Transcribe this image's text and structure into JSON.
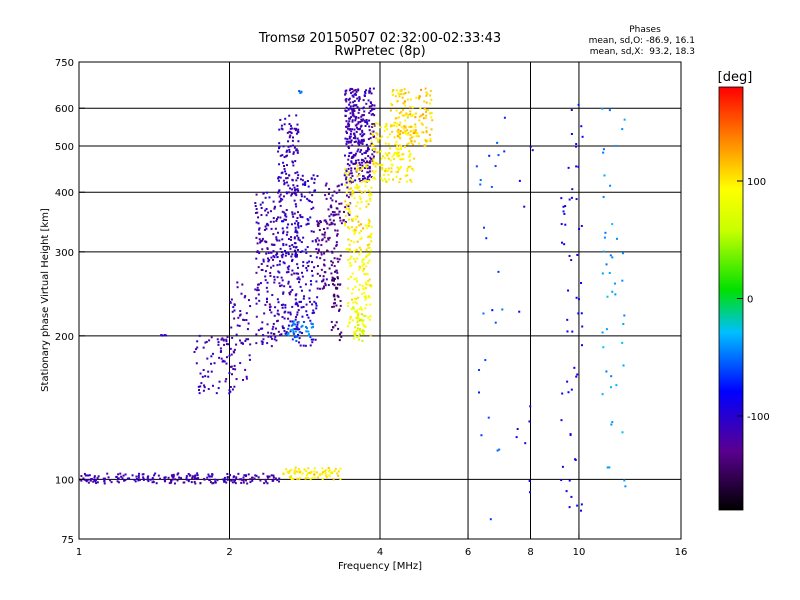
{
  "chart_data": {
    "type": "scatter",
    "title": "Tromsø 20150507 02:32:00-02:33:43",
    "subtitle": "RwPretec (8p)",
    "xlabel": "Frequency [MHz]",
    "ylabel": "Stationary phase Virtual Height [km]",
    "x_scale": "log",
    "y_scale": "log",
    "xlim": [
      1,
      16
    ],
    "ylim": [
      75,
      750
    ],
    "x_ticks": [
      1,
      2,
      4,
      6,
      8,
      10,
      16
    ],
    "x_tick_labels": [
      "1",
      "2",
      "4",
      "6",
      "8",
      "10",
      "16"
    ],
    "x_gridlines": [
      2,
      4,
      6,
      8,
      10
    ],
    "y_ticks": [
      75,
      100,
      200,
      300,
      400,
      500,
      600,
      750
    ],
    "y_tick_labels": [
      "75",
      "100",
      "200",
      "300",
      "400",
      "500",
      "600",
      "750"
    ],
    "y_gridlines": [
      100,
      200,
      300,
      400,
      500,
      600
    ],
    "grid": true,
    "stats": {
      "heading": "Phases",
      "line_o": "mean, sd,O: -86.9, 16.1",
      "line_x": "mean, sd,X:  93.2, 18.3"
    },
    "colorbar": {
      "label": "[deg]",
      "min": -180,
      "max": 180,
      "ticks": [
        100,
        0,
        -100
      ],
      "tick_labels": [
        "100",
        "0",
        "-100"
      ]
    },
    "series": [
      {
        "kind": "band",
        "f": [
          1.0,
          2.55
        ],
        "h": [
          98,
          103
        ],
        "phase": -115,
        "n": 220
      },
      {
        "kind": "band",
        "f": [
          2.55,
          3.35
        ],
        "h": [
          100,
          106
        ],
        "phase": 100,
        "n": 80
      },
      {
        "kind": "band",
        "f": [
          1.45,
          1.5
        ],
        "h": [
          200,
          201
        ],
        "phase": -110,
        "n": 6
      },
      {
        "kind": "band",
        "f": [
          1.7,
          2.05
        ],
        "h": [
          150,
          200
        ],
        "phase": -115,
        "n": 70
      },
      {
        "kind": "band",
        "f": [
          2.0,
          2.2
        ],
        "h": [
          160,
          260
        ],
        "phase": -115,
        "n": 60
      },
      {
        "kind": "band",
        "f": [
          2.25,
          2.5
        ],
        "h": [
          190,
          400
        ],
        "phase": -115,
        "n": 170
      },
      {
        "kind": "band",
        "f": [
          2.5,
          2.75
        ],
        "h": [
          200,
          580
        ],
        "phase": -110,
        "n": 260
      },
      {
        "kind": "band",
        "f": [
          2.7,
          3.0
        ],
        "h": [
          190,
          440
        ],
        "phase": -105,
        "n": 150
      },
      {
        "kind": "band",
        "f": [
          2.6,
          2.95
        ],
        "h": [
          195,
          215
        ],
        "phase": -50,
        "n": 40
      },
      {
        "kind": "band",
        "f": [
          3.0,
          3.3
        ],
        "h": [
          250,
          350
        ],
        "phase": -130,
        "n": 90
      },
      {
        "kind": "band",
        "f": [
          3.1,
          3.5
        ],
        "h": [
          340,
          420
        ],
        "phase": -125,
        "n": 60
      },
      {
        "kind": "band",
        "f": [
          3.2,
          3.35
        ],
        "h": [
          195,
          300
        ],
        "phase": -140,
        "n": 40
      },
      {
        "kind": "band",
        "f": [
          3.4,
          3.9
        ],
        "h": [
          420,
          660
        ],
        "phase": -115,
        "n": 320
      },
      {
        "kind": "band",
        "f": [
          3.4,
          3.85
        ],
        "h": [
          300,
          460
        ],
        "phase": 100,
        "n": 140
      },
      {
        "kind": "band",
        "f": [
          3.45,
          3.85
        ],
        "h": [
          200,
          300
        ],
        "phase": 95,
        "n": 120
      },
      {
        "kind": "band",
        "f": [
          3.5,
          3.75
        ],
        "h": [
          195,
          230
        ],
        "phase": 60,
        "n": 30
      },
      {
        "kind": "band",
        "f": [
          3.85,
          4.7
        ],
        "h": [
          420,
          560
        ],
        "phase": 100,
        "n": 160
      },
      {
        "kind": "band",
        "f": [
          4.2,
          5.1
        ],
        "h": [
          500,
          660
        ],
        "phase": 110,
        "n": 140
      },
      {
        "kind": "band",
        "f": [
          2.75,
          2.8
        ],
        "h": [
          640,
          660
        ],
        "phase": -50,
        "n": 4
      },
      {
        "kind": "band",
        "f": [
          6.2,
          7.2
        ],
        "h": [
          80,
          620
        ],
        "phase": -60,
        "n": 25
      },
      {
        "kind": "band",
        "f": [
          7.5,
          8.2
        ],
        "h": [
          90,
          600
        ],
        "phase": -100,
        "n": 12
      },
      {
        "kind": "band",
        "f": [
          9.2,
          10.2
        ],
        "h": [
          80,
          620
        ],
        "phase": -90,
        "n": 60
      },
      {
        "kind": "band",
        "f": [
          11.0,
          12.4
        ],
        "h": [
          95,
          620
        ],
        "phase": -40,
        "n": 45
      }
    ]
  }
}
